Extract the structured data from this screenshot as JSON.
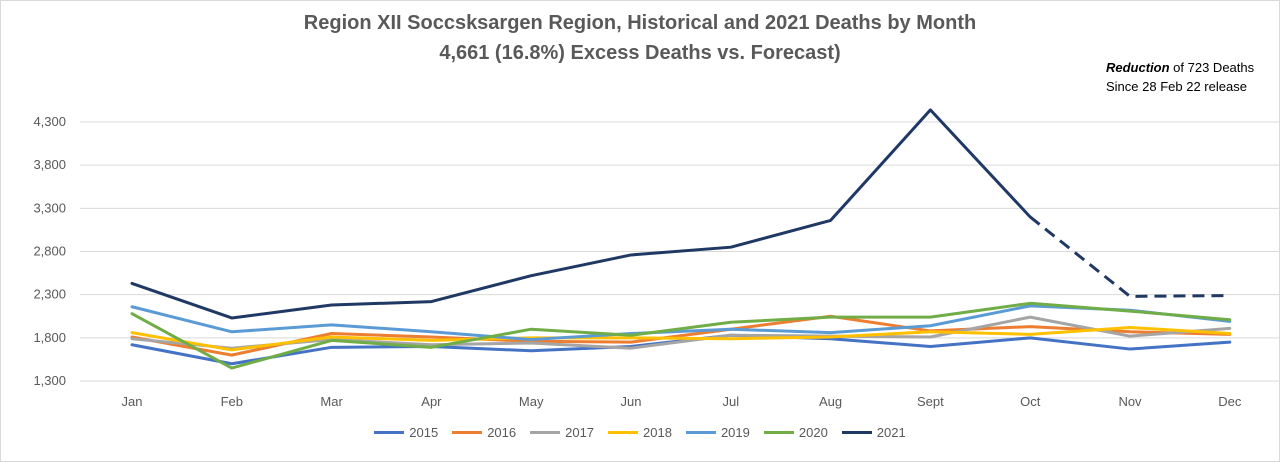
{
  "title_line1": "Region XII Soccsksargen Region, Historical and 2021 Deaths by Month",
  "title_line2": "4,661 (16.8%) Excess Deaths vs. Forecast)",
  "note": {
    "bold": "Reduction",
    "rest": " of 723 Deaths",
    "line2": "Since 28 Feb 22 release"
  },
  "chart_data": {
    "type": "line",
    "title": "Region XII Soccsksargen Region, Historical and 2021 Deaths by Month",
    "subtitle": "4,661 (16.8%) Excess Deaths vs. Forecast)",
    "categories": [
      "Jan",
      "Feb",
      "Mar",
      "Apr",
      "May",
      "Jun",
      "Jul",
      "Aug",
      "Sept",
      "Oct",
      "Nov",
      "Dec"
    ],
    "y_ticks": [
      "1,300",
      "1,800",
      "2,300",
      "2,800",
      "3,300",
      "3,800",
      "4,300"
    ],
    "ylim": [
      1300,
      4300
    ],
    "grid": true,
    "legend_position": "bottom",
    "series": [
      {
        "name": "2015",
        "color": "#4472c4",
        "values": [
          1720,
          1500,
          1690,
          1700,
          1650,
          1700,
          1830,
          1790,
          1700,
          1800,
          1670,
          1750
        ]
      },
      {
        "name": "2016",
        "color": "#ed7d31",
        "values": [
          1810,
          1600,
          1850,
          1810,
          1760,
          1750,
          1900,
          2050,
          1880,
          1930,
          1870,
          1840
        ]
      },
      {
        "name": "2017",
        "color": "#a5a5a5",
        "values": [
          1790,
          1680,
          1780,
          1720,
          1740,
          1680,
          1830,
          1820,
          1810,
          2040,
          1820,
          1910
        ]
      },
      {
        "name": "2018",
        "color": "#ffc000",
        "values": [
          1860,
          1660,
          1810,
          1770,
          1800,
          1800,
          1790,
          1810,
          1870,
          1840,
          1920,
          1850
        ]
      },
      {
        "name": "2019",
        "color": "#5b9bd5",
        "values": [
          2160,
          1870,
          1950,
          1870,
          1780,
          1850,
          1900,
          1860,
          1940,
          2170,
          2120,
          1990
        ]
      },
      {
        "name": "2020",
        "color": "#70ad47",
        "values": [
          2080,
          1450,
          1770,
          1690,
          1900,
          1830,
          1980,
          2040,
          2040,
          2200,
          2110,
          2010
        ]
      },
      {
        "name": "2021",
        "color": "#203864",
        "values": [
          2430,
          2030,
          2180,
          2220,
          2520,
          2760,
          2850,
          3160,
          4440,
          3200,
          2280,
          2290
        ],
        "dashed_from_index": 9
      }
    ]
  }
}
